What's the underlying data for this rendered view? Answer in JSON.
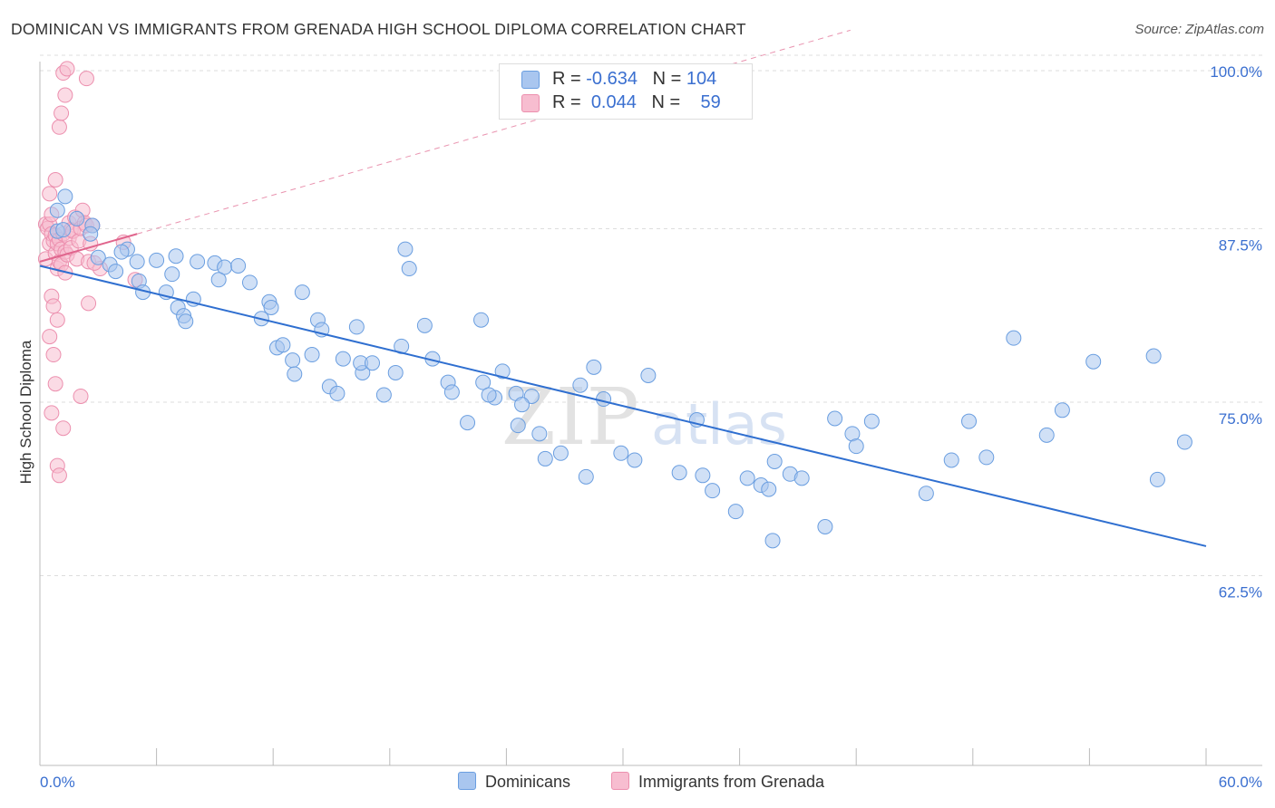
{
  "title": "DOMINICAN VS IMMIGRANTS FROM GRENADA HIGH SCHOOL DIPLOMA CORRELATION CHART",
  "source": "Source: ZipAtlas.com",
  "watermark": {
    "zip": "ZIP",
    "atlas": "atlas"
  },
  "legend": {
    "rows": [
      {
        "r_label": "R = ",
        "r_value": "-0.634",
        "n_label": "N = ",
        "n_value": "104"
      },
      {
        "r_label": "R = ",
        "r_value": "0.044",
        "n_label": "N = ",
        "n_value": "59"
      }
    ]
  },
  "colors": {
    "blue_fill": "#a9c6ef",
    "blue_stroke": "#6a9ee0",
    "blue_line": "#2f6fd0",
    "pink_fill": "#f7bdd0",
    "pink_stroke": "#ec8fae",
    "pink_line": "#e0658d",
    "tick_label": "#3a6fd0",
    "grid": "#dddddd",
    "axis": "#bbbbbb"
  },
  "chart_data": {
    "type": "scatter",
    "title": "DOMINICAN VS IMMIGRANTS FROM GRENADA HIGH SCHOOL DIPLOMA CORRELATION CHART",
    "xlabel": "",
    "ylabel": "High School Diploma",
    "xlim": [
      0,
      60
    ],
    "ylim": [
      50,
      100
    ],
    "x_tick_labels": [
      "0.0%",
      "60.0%"
    ],
    "y_ticks": [
      62.5,
      75.0,
      87.5,
      100.0
    ],
    "y_tick_labels": [
      "62.5%",
      "75.0%",
      "87.5%",
      "100.0%"
    ],
    "grid": true,
    "legend_position": "top-center",
    "series": [
      {
        "name": "Dominicans",
        "color": "#6a9ee0",
        "points": [
          [
            0.9,
            90
          ],
          [
            0.9,
            88.5
          ],
          [
            1.3,
            91
          ],
          [
            1.2,
            88.6
          ],
          [
            1.9,
            89.4
          ],
          [
            2.7,
            88.9
          ],
          [
            2.6,
            88.3
          ],
          [
            3.0,
            86.6
          ],
          [
            3.6,
            86.1
          ],
          [
            3.9,
            85.6
          ],
          [
            4.5,
            87.2
          ],
          [
            4.2,
            87.0
          ],
          [
            5.0,
            86.3
          ],
          [
            5.1,
            84.9
          ],
          [
            5.3,
            84.1
          ],
          [
            6.0,
            86.4
          ],
          [
            6.5,
            84.1
          ],
          [
            7.0,
            86.7
          ],
          [
            6.8,
            85.4
          ],
          [
            7.9,
            83.6
          ],
          [
            7.1,
            83.0
          ],
          [
            7.4,
            82.4
          ],
          [
            7.5,
            82.0
          ],
          [
            8.1,
            86.3
          ],
          [
            9.0,
            86.2
          ],
          [
            9.5,
            85.9
          ],
          [
            9.2,
            85.0
          ],
          [
            10.2,
            86.0
          ],
          [
            10.8,
            84.8
          ],
          [
            11.8,
            83.4
          ],
          [
            11.9,
            83.0
          ],
          [
            11.4,
            82.2
          ],
          [
            12.2,
            80.1
          ],
          [
            12.5,
            80.3
          ],
          [
            13.0,
            79.2
          ],
          [
            13.5,
            84.1
          ],
          [
            14.3,
            82.1
          ],
          [
            14.5,
            81.4
          ],
          [
            14.0,
            79.6
          ],
          [
            13.1,
            78.2
          ],
          [
            14.9,
            77.3
          ],
          [
            15.3,
            76.8
          ],
          [
            15.6,
            79.3
          ],
          [
            16.3,
            81.6
          ],
          [
            16.6,
            78.3
          ],
          [
            16.5,
            79.0
          ],
          [
            17.1,
            79.0
          ],
          [
            18.6,
            80.2
          ],
          [
            19.0,
            85.8
          ],
          [
            18.8,
            87.2
          ],
          [
            18.3,
            78.3
          ],
          [
            17.7,
            76.7
          ],
          [
            19.8,
            81.7
          ],
          [
            20.2,
            79.3
          ],
          [
            21.0,
            77.6
          ],
          [
            21.2,
            76.9
          ],
          [
            22.0,
            74.7
          ],
          [
            22.7,
            82.1
          ],
          [
            22.8,
            77.6
          ],
          [
            23.4,
            76.5
          ],
          [
            24.5,
            76.8
          ],
          [
            25.3,
            76.6
          ],
          [
            24.8,
            76.0
          ],
          [
            23.1,
            76.7
          ],
          [
            23.8,
            78.4
          ],
          [
            24.6,
            74.5
          ],
          [
            25.7,
            73.9
          ],
          [
            26.0,
            72.1
          ],
          [
            26.8,
            72.5
          ],
          [
            27.8,
            77.4
          ],
          [
            28.5,
            78.7
          ],
          [
            29.0,
            76.4
          ],
          [
            28.1,
            70.8
          ],
          [
            29.9,
            72.5
          ],
          [
            30.6,
            72.0
          ],
          [
            31.3,
            78.1
          ],
          [
            32.9,
            71.1
          ],
          [
            33.8,
            74.9
          ],
          [
            34.1,
            70.9
          ],
          [
            34.6,
            69.8
          ],
          [
            35.8,
            68.3
          ],
          [
            36.4,
            70.7
          ],
          [
            37.1,
            70.2
          ],
          [
            37.8,
            71.9
          ],
          [
            37.5,
            69.9
          ],
          [
            37.7,
            66.2
          ],
          [
            38.6,
            71.0
          ],
          [
            39.2,
            70.7
          ],
          [
            40.4,
            67.2
          ],
          [
            40.9,
            75.0
          ],
          [
            41.8,
            73.9
          ],
          [
            42.0,
            73.0
          ],
          [
            42.8,
            74.8
          ],
          [
            45.6,
            69.6
          ],
          [
            46.9,
            72.0
          ],
          [
            47.8,
            74.8
          ],
          [
            48.7,
            72.2
          ],
          [
            50.1,
            80.8
          ],
          [
            51.8,
            73.8
          ],
          [
            52.6,
            75.6
          ],
          [
            54.2,
            79.1
          ],
          [
            57.3,
            79.5
          ],
          [
            57.5,
            70.6
          ],
          [
            58.9,
            73.3
          ]
        ]
      },
      {
        "name": "Immigrants from Grenada",
        "color": "#ec8fae",
        "points": [
          [
            0.3,
            86.5
          ],
          [
            0.3,
            89.0
          ],
          [
            0.4,
            88.7
          ],
          [
            0.5,
            89.0
          ],
          [
            0.5,
            87.6
          ],
          [
            0.6,
            89.7
          ],
          [
            0.6,
            88.3
          ],
          [
            0.7,
            87.8
          ],
          [
            0.8,
            88.2
          ],
          [
            0.8,
            86.9
          ],
          [
            0.9,
            87.6
          ],
          [
            0.9,
            85.8
          ],
          [
            1.0,
            86.3
          ],
          [
            1.0,
            87.9
          ],
          [
            1.1,
            87.2
          ],
          [
            1.1,
            86.1
          ],
          [
            1.2,
            88.3
          ],
          [
            1.3,
            87.0
          ],
          [
            1.3,
            85.5
          ],
          [
            1.4,
            86.8
          ],
          [
            1.5,
            88.0
          ],
          [
            1.5,
            89.1
          ],
          [
            1.6,
            88.6
          ],
          [
            1.6,
            87.3
          ],
          [
            1.7,
            88.5
          ],
          [
            1.8,
            89.5
          ],
          [
            1.9,
            86.5
          ],
          [
            2.0,
            87.8
          ],
          [
            2.1,
            88.7
          ],
          [
            2.2,
            90.0
          ],
          [
            2.3,
            89.1
          ],
          [
            2.4,
            88.9
          ],
          [
            2.5,
            86.3
          ],
          [
            2.6,
            87.6
          ],
          [
            2.7,
            88.9
          ],
          [
            0.5,
            91.2
          ],
          [
            0.8,
            92.2
          ],
          [
            1.0,
            96.0
          ],
          [
            1.1,
            97.0
          ],
          [
            1.3,
            98.3
          ],
          [
            1.2,
            99.9
          ],
          [
            1.4,
            100.2
          ],
          [
            2.4,
            99.5
          ],
          [
            0.6,
            83.8
          ],
          [
            0.7,
            83.1
          ],
          [
            0.9,
            82.1
          ],
          [
            0.5,
            80.9
          ],
          [
            0.7,
            79.6
          ],
          [
            0.8,
            77.5
          ],
          [
            0.6,
            75.4
          ],
          [
            1.2,
            74.3
          ],
          [
            0.9,
            71.6
          ],
          [
            1.0,
            70.9
          ],
          [
            2.1,
            76.6
          ],
          [
            2.5,
            83.3
          ],
          [
            3.1,
            85.8
          ],
          [
            2.8,
            86.2
          ],
          [
            4.3,
            87.7
          ],
          [
            4.9,
            85.0
          ]
        ]
      }
    ],
    "trend_lines": [
      {
        "series": "Dominicans",
        "x": [
          0,
          60
        ],
        "y": [
          86.0,
          65.8
        ]
      },
      {
        "series": "Immigrants from Grenada",
        "x": [
          0,
          5.0
        ],
        "y": [
          86.3,
          88.3
        ]
      }
    ]
  },
  "bottom_legend": [
    "Dominicans",
    "Immigrants from Grenada"
  ]
}
